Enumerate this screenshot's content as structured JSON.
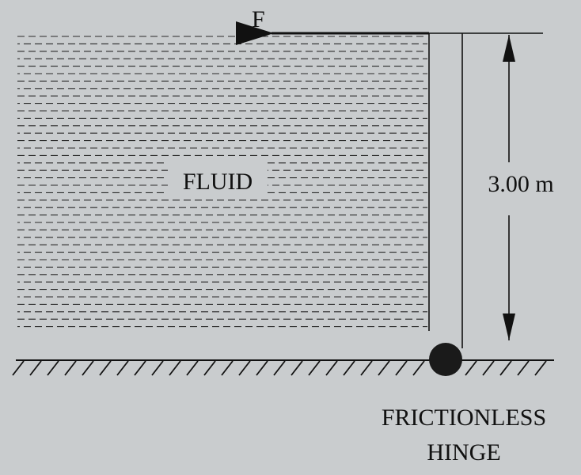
{
  "labels": {
    "force": "F",
    "fluid": "FLUID",
    "height": "3.00 m",
    "hinge_line1": "FRICTIONLESS",
    "hinge_line2": "HINGE"
  },
  "colors": {
    "background": "#c9ccce",
    "ink": "#111111",
    "fluid_dash": "#2a2a2a",
    "hinge": "#1a1a1a"
  }
}
